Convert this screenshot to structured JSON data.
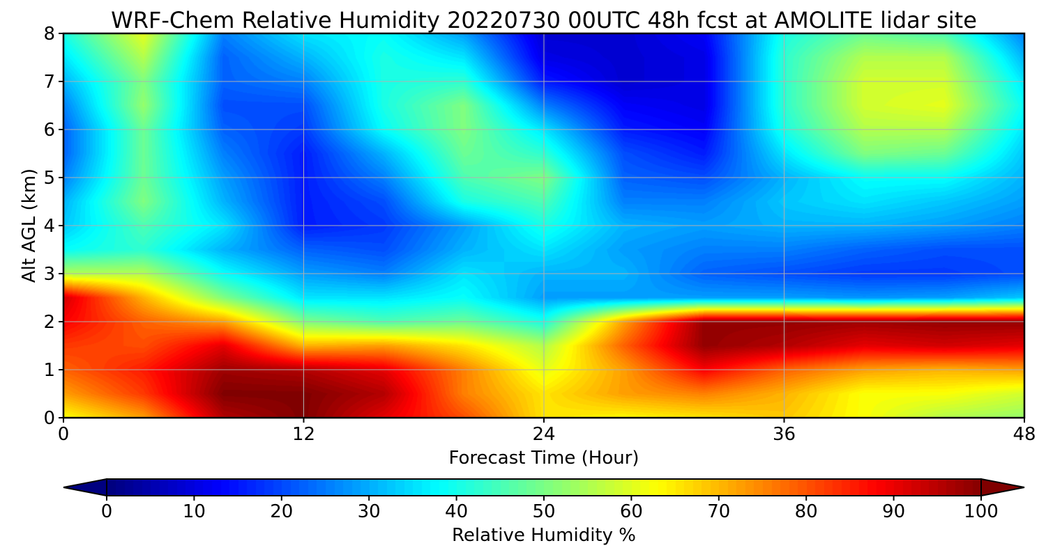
{
  "chart_data": {
    "type": "heatmap",
    "title": "WRF-Chem Relative Humidity 20220730 00UTC 48h fcst at AMOLITE lidar site",
    "xlabel": "Forecast Time (Hour)",
    "ylabel": "Alt AGL (km)",
    "xlim": [
      0,
      48
    ],
    "ylim": [
      0,
      8
    ],
    "xticks": [
      0,
      12,
      24,
      36,
      48
    ],
    "yticks": [
      0,
      1,
      2,
      3,
      4,
      5,
      6,
      7,
      8
    ],
    "grid": true,
    "x": [
      0,
      4,
      8,
      12,
      16,
      20,
      24,
      28,
      32,
      36,
      40,
      44,
      48
    ],
    "y": [
      0,
      0.5,
      1,
      1.5,
      2,
      2.5,
      3,
      3.5,
      4,
      4.5,
      5,
      5.5,
      6,
      6.5,
      7,
      7.5,
      8
    ],
    "values": [
      [
        62,
        72,
        95,
        100,
        90,
        80,
        65,
        63,
        65,
        68,
        62,
        55,
        52
      ],
      [
        72,
        82,
        100,
        100,
        95,
        75,
        65,
        72,
        75,
        70,
        62,
        62,
        58
      ],
      [
        78,
        85,
        97,
        95,
        90,
        75,
        60,
        72,
        88,
        78,
        72,
        70,
        72
      ],
      [
        82,
        80,
        90,
        70,
        72,
        65,
        55,
        78,
        98,
        95,
        90,
        92,
        90
      ],
      [
        88,
        78,
        72,
        50,
        45,
        48,
        40,
        72,
        98,
        98,
        97,
        98,
        98
      ],
      [
        92,
        70,
        50,
        35,
        35,
        38,
        28,
        28,
        28,
        28,
        27,
        28,
        32
      ],
      [
        55,
        55,
        38,
        28,
        25,
        35,
        30,
        30,
        22,
        20,
        18,
        18,
        20
      ],
      [
        38,
        42,
        30,
        22,
        20,
        30,
        35,
        28,
        25,
        25,
        22,
        20,
        20
      ],
      [
        32,
        45,
        35,
        15,
        18,
        28,
        40,
        30,
        28,
        30,
        30,
        28,
        25
      ],
      [
        30,
        50,
        30,
        15,
        20,
        40,
        45,
        25,
        25,
        32,
        35,
        32,
        28
      ],
      [
        25,
        48,
        28,
        15,
        25,
        45,
        50,
        22,
        20,
        30,
        38,
        38,
        30
      ],
      [
        22,
        48,
        25,
        15,
        30,
        48,
        42,
        20,
        15,
        35,
        50,
        48,
        32
      ],
      [
        22,
        48,
        22,
        18,
        38,
        50,
        35,
        15,
        12,
        40,
        55,
        55,
        35
      ],
      [
        25,
        52,
        20,
        20,
        40,
        50,
        25,
        12,
        10,
        42,
        58,
        60,
        38
      ],
      [
        30,
        50,
        22,
        25,
        40,
        42,
        15,
        8,
        10,
        42,
        58,
        58,
        35
      ],
      [
        35,
        55,
        22,
        30,
        40,
        35,
        10,
        8,
        10,
        42,
        55,
        55,
        30
      ],
      [
        40,
        60,
        25,
        35,
        38,
        28,
        8,
        8,
        12,
        40,
        48,
        45,
        25
      ]
    ],
    "colorbar": {
      "label": "Relative Humidity %",
      "ticks": [
        0,
        10,
        20,
        30,
        40,
        50,
        60,
        70,
        80,
        90,
        100
      ],
      "range": [
        0,
        100
      ],
      "extend": "both",
      "colormap": "jet"
    }
  }
}
